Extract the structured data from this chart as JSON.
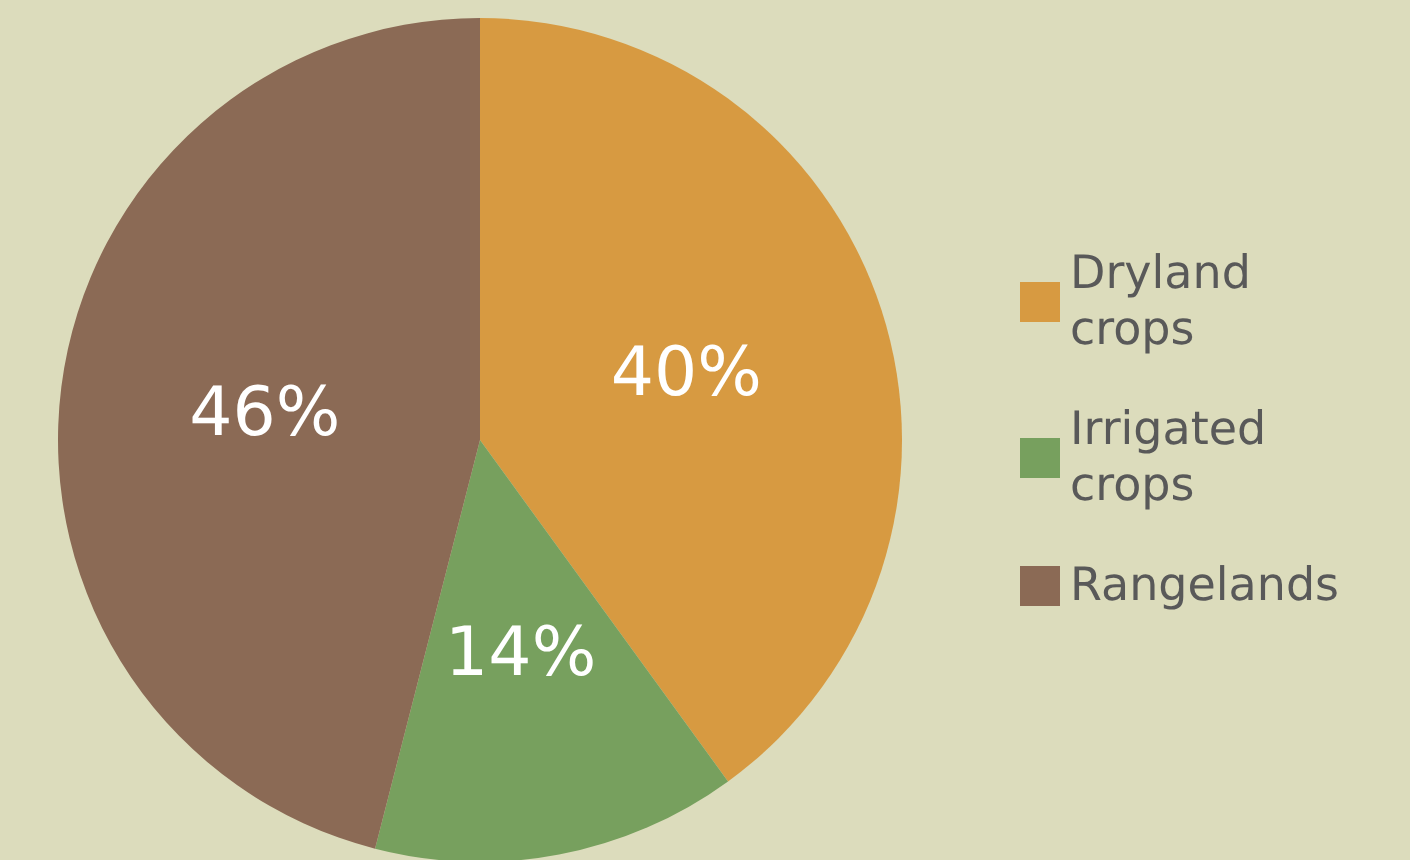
{
  "chart_data": {
    "type": "pie",
    "categories": [
      "Dryland crops",
      "Irrigated crops",
      "Rangelands"
    ],
    "values": [
      40,
      14,
      46
    ],
    "colors": [
      "#d79a41",
      "#77a05e",
      "#8b6a55"
    ],
    "value_labels": [
      "40%",
      "14%",
      "46%"
    ],
    "legend": "right"
  }
}
